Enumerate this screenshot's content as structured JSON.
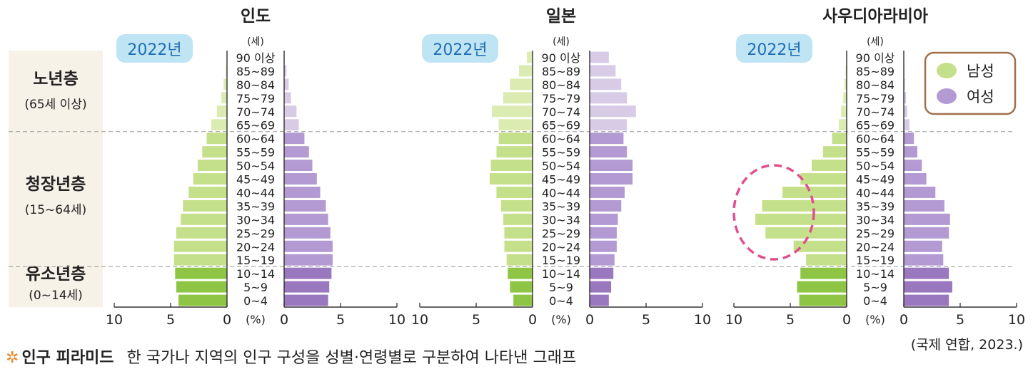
{
  "colors": {
    "male_old": "#dcebb2",
    "male_young": "#c5e08a",
    "male_child": "#8fc544",
    "female_old": "#d8cbe6",
    "female_young": "#b39ad3",
    "female_child": "#9a78bf",
    "band_bg": "#f7f2e8",
    "year_badge": "#bfe4f3",
    "year_text": "#1f6fb2",
    "dashed_line": "#9a9a9a",
    "circle": "#e0508f",
    "legend_border": "#a0704a"
  },
  "age_unit": "(세)",
  "axis_unit": "(%)",
  "age_groups": [
    "0~4",
    "5~9",
    "10~14",
    "15~19",
    "20~24",
    "25~29",
    "30~34",
    "35~39",
    "40~44",
    "45~49",
    "50~54",
    "55~59",
    "60~64",
    "65~69",
    "70~74",
    "75~79",
    "80~84",
    "85~89",
    "90 이상"
  ],
  "side_labels": [
    {
      "title": "노년층",
      "sub": "(65세 이상)"
    },
    {
      "title": "청장년층",
      "sub": "(15~64세)"
    },
    {
      "title": "유소년층",
      "sub": "(0~14세)"
    }
  ],
  "legend": {
    "male": "남성",
    "female": "여성"
  },
  "source": "(국제 연합, 2023.)",
  "footnote": {
    "symbol": "✲",
    "term": "인구 피라미드",
    "definition": "한 국가나 지역의 인구 구성을 성별·연령별로 구분하여 나타낸 그래프"
  },
  "chart_data": [
    {
      "type": "bar",
      "title": "인도",
      "year_label": "2022년",
      "xlabel": "(%)",
      "ylabel": "(세)",
      "xlim": [
        0,
        10
      ],
      "ticks": [
        "10",
        "5",
        "0",
        "0",
        "5",
        "10"
      ],
      "categories": [
        "0~4",
        "5~9",
        "10~14",
        "15~19",
        "20~24",
        "25~29",
        "30~34",
        "35~39",
        "40~44",
        "45~49",
        "50~54",
        "55~59",
        "60~64",
        "65~69",
        "70~74",
        "75~79",
        "80~84",
        "85~89",
        "90 이상"
      ],
      "series": [
        {
          "name": "남성",
          "values": [
            4.3,
            4.5,
            4.6,
            4.7,
            4.7,
            4.5,
            4.1,
            3.9,
            3.4,
            3.0,
            2.6,
            2.2,
            1.8,
            1.4,
            0.9,
            0.5,
            0.3,
            0.1,
            0.05
          ]
        },
        {
          "name": "여성",
          "values": [
            3.9,
            4.0,
            4.2,
            4.3,
            4.3,
            4.1,
            3.9,
            3.7,
            3.2,
            2.9,
            2.5,
            2.2,
            1.8,
            1.3,
            1.1,
            0.6,
            0.4,
            0.2,
            0.05
          ]
        }
      ]
    },
    {
      "type": "bar",
      "title": "일본",
      "year_label": "2022년",
      "xlabel": "(%)",
      "ylabel": "(세)",
      "xlim": [
        0,
        10
      ],
      "ticks": [
        "10",
        "5",
        "0",
        "0",
        "5",
        "10"
      ],
      "categories": [
        "0~4",
        "5~9",
        "10~14",
        "15~19",
        "20~24",
        "25~29",
        "30~34",
        "35~39",
        "40~44",
        "45~49",
        "50~54",
        "55~59",
        "60~64",
        "65~69",
        "70~74",
        "75~79",
        "80~84",
        "85~89",
        "90 이상"
      ],
      "series": [
        {
          "name": "남성",
          "values": [
            1.7,
            2.0,
            2.2,
            2.3,
            2.5,
            2.5,
            2.6,
            2.8,
            3.2,
            3.8,
            3.7,
            3.2,
            3.0,
            3.0,
            3.6,
            2.6,
            2.0,
            1.2,
            0.5
          ]
        },
        {
          "name": "여성",
          "values": [
            1.7,
            1.9,
            2.1,
            2.2,
            2.4,
            2.4,
            2.5,
            2.8,
            3.1,
            3.8,
            3.8,
            3.3,
            3.0,
            3.3,
            4.1,
            3.3,
            2.8,
            2.3,
            1.7
          ]
        }
      ]
    },
    {
      "type": "bar",
      "title": "사우디아라비아",
      "year_label": "2022년",
      "xlabel": "(%)",
      "ylabel": "(세)",
      "xlim": [
        0,
        10
      ],
      "ticks": [
        "10",
        "5",
        "0",
        "0",
        "5",
        "10"
      ],
      "categories": [
        "0~4",
        "5~9",
        "10~14",
        "15~19",
        "20~24",
        "25~29",
        "30~34",
        "35~39",
        "40~44",
        "45~49",
        "50~54",
        "55~59",
        "60~64",
        "65~69",
        "70~74",
        "75~79",
        "80~84",
        "85~89",
        "90 이상"
      ],
      "series": [
        {
          "name": "남성",
          "values": [
            4.2,
            4.4,
            4.1,
            3.6,
            4.7,
            7.2,
            8.1,
            7.5,
            5.7,
            4.1,
            3.1,
            2.1,
            1.3,
            0.7,
            0.5,
            0.3,
            0.2,
            0.1,
            0.05
          ]
        },
        {
          "name": "여성",
          "values": [
            4.0,
            4.3,
            4.0,
            3.5,
            3.4,
            4.0,
            4.1,
            3.6,
            2.8,
            2.0,
            1.6,
            1.2,
            0.9,
            0.5,
            0.3,
            0.2,
            0.1,
            0.05,
            0.03
          ]
        }
      ]
    }
  ]
}
